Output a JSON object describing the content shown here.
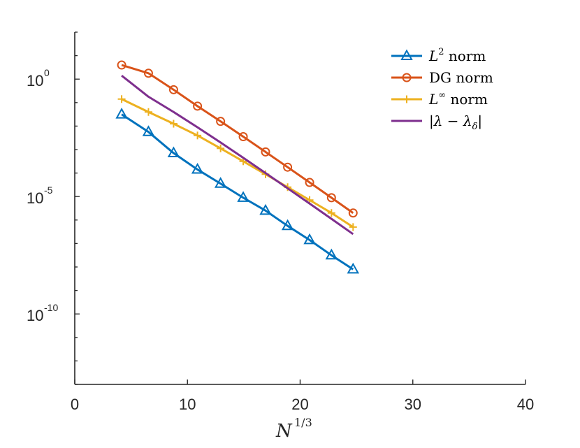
{
  "chart_data": {
    "type": "line",
    "yscale": "log",
    "title": "",
    "xlabel": "N^{1/3}",
    "xlabel_base": "N",
    "xlabel_exp": "1/3",
    "ylabel": "",
    "xlim": [
      0,
      40
    ],
    "ylim_exp": [
      -13,
      2
    ],
    "xticks": [
      0,
      10,
      20,
      30,
      40
    ],
    "xtick_labels": [
      "0",
      "10",
      "20",
      "30",
      "40"
    ],
    "yticks_exp": [
      0,
      -5,
      -10
    ],
    "ytick_base": "10",
    "ytick_exp_labels": [
      "0",
      "-5",
      "-10"
    ],
    "legend_position": "top-right",
    "series": [
      {
        "name": "L^2 norm",
        "legend_base": "L",
        "legend_sup": "2",
        "legend_rest": " norm",
        "color": "#0072BD",
        "marker": "triangle",
        "x": [
          4.16,
          6.54,
          8.77,
          10.89,
          12.94,
          14.95,
          16.93,
          18.89,
          20.84,
          22.78,
          24.7
        ],
        "y_exp": [
          -1.5,
          -2.25,
          -3.15,
          -3.85,
          -4.45,
          -5.05,
          -5.6,
          -6.25,
          -6.85,
          -7.5,
          -8.1
        ]
      },
      {
        "name": "DG norm",
        "legend_base": "DG norm",
        "legend_sup": "",
        "legend_rest": "",
        "color": "#D95319",
        "marker": "circle",
        "x": [
          4.16,
          6.54,
          8.77,
          10.89,
          12.94,
          14.95,
          16.93,
          18.89,
          20.84,
          22.78,
          24.7
        ],
        "y_exp": [
          0.6,
          0.25,
          -0.45,
          -1.15,
          -1.8,
          -2.45,
          -3.1,
          -3.75,
          -4.4,
          -5.05,
          -5.7
        ]
      },
      {
        "name": "L^inf norm",
        "legend_base": "L",
        "legend_sup": "∞",
        "legend_rest": " norm",
        "color": "#EDB120",
        "marker": "plus",
        "x": [
          4.16,
          6.54,
          8.77,
          10.89,
          12.94,
          14.95,
          16.93,
          18.89,
          20.84,
          22.78,
          24.7
        ],
        "y_exp": [
          -0.85,
          -1.4,
          -1.9,
          -2.4,
          -2.95,
          -3.5,
          -4.05,
          -4.6,
          -5.15,
          -5.7,
          -6.3
        ]
      },
      {
        "name": "|λ - λ_δ|",
        "legend_base": "|λ − λ",
        "legend_sup": "",
        "legend_sub": "δ",
        "legend_rest": "|",
        "color": "#7E2F8E",
        "marker": "none",
        "x": [
          4.16,
          6.54,
          8.77,
          10.89,
          12.94,
          14.95,
          16.93,
          18.89,
          20.84,
          22.78,
          24.7
        ],
        "y_exp": [
          0.15,
          -0.75,
          -1.4,
          -2.05,
          -2.7,
          -3.35,
          -4.0,
          -4.65,
          -5.3,
          -5.95,
          -6.6
        ]
      }
    ]
  }
}
